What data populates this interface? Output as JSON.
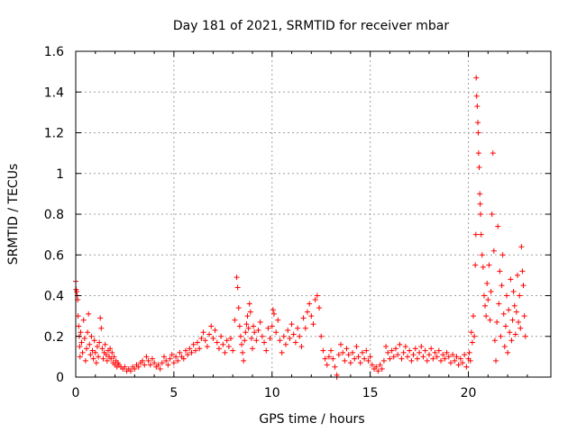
{
  "chart_data": {
    "type": "scatter",
    "title": "Day 181 of 2021, SRMTID for receiver mbar",
    "xlabel": "GPS time / hours",
    "ylabel": "SRMTID / TECUs",
    "xlim": [
      0,
      24.2
    ],
    "ylim": [
      0,
      1.6
    ],
    "xticks": [
      0,
      5,
      10,
      15,
      20
    ],
    "xtick_labels": [
      "0",
      "5",
      "10",
      "15",
      "20"
    ],
    "yticks": [
      0,
      0.2,
      0.4,
      0.6,
      0.8,
      1.0,
      1.2,
      1.4,
      1.6
    ],
    "ytick_labels": [
      "0",
      "0.2",
      "0.4",
      "0.6",
      "0.8",
      "1",
      "1.2",
      "1.4",
      "1.6"
    ],
    "grid": true,
    "marker": "+",
    "series_color": "#ff0000",
    "series": [
      {
        "name": "SRMTID",
        "points": [
          [
            0.0,
            0.47
          ],
          [
            0.02,
            0.43
          ],
          [
            0.05,
            0.42
          ],
          [
            0.08,
            0.4
          ],
          [
            0.1,
            0.38
          ],
          [
            0.12,
            0.3
          ],
          [
            0.15,
            0.25
          ],
          [
            0.18,
            0.2
          ],
          [
            0.2,
            0.15
          ],
          [
            0.22,
            0.1
          ],
          [
            0.25,
            0.22
          ],
          [
            0.3,
            0.17
          ],
          [
            0.35,
            0.12
          ],
          [
            0.4,
            0.28
          ],
          [
            0.45,
            0.19
          ],
          [
            0.5,
            0.08
          ],
          [
            0.55,
            0.14
          ],
          [
            0.6,
            0.22
          ],
          [
            0.65,
            0.31
          ],
          [
            0.7,
            0.16
          ],
          [
            0.75,
            0.11
          ],
          [
            0.8,
            0.2
          ],
          [
            0.85,
            0.13
          ],
          [
            0.9,
            0.09
          ],
          [
            0.95,
            0.18
          ],
          [
            1.0,
            0.12
          ],
          [
            1.05,
            0.07
          ],
          [
            1.1,
            0.15
          ],
          [
            1.15,
            0.1
          ],
          [
            1.2,
            0.17
          ],
          [
            1.25,
            0.29
          ],
          [
            1.3,
            0.24
          ],
          [
            1.35,
            0.14
          ],
          [
            1.4,
            0.09
          ],
          [
            1.45,
            0.12
          ],
          [
            1.5,
            0.16
          ],
          [
            1.55,
            0.11
          ],
          [
            1.6,
            0.08
          ],
          [
            1.65,
            0.13
          ],
          [
            1.7,
            0.1
          ],
          [
            1.75,
            0.14
          ],
          [
            1.8,
            0.09
          ],
          [
            1.85,
            0.12
          ],
          [
            1.9,
            0.07
          ],
          [
            1.95,
            0.1
          ],
          [
            2.0,
            0.06
          ],
          [
            2.05,
            0.08
          ],
          [
            2.1,
            0.05
          ],
          [
            2.15,
            0.07
          ],
          [
            2.2,
            0.06
          ],
          [
            2.3,
            0.05
          ],
          [
            2.4,
            0.04
          ],
          [
            2.5,
            0.05
          ],
          [
            2.6,
            0.03
          ],
          [
            2.7,
            0.04
          ],
          [
            2.8,
            0.03
          ],
          [
            2.9,
            0.05
          ],
          [
            3.0,
            0.04
          ],
          [
            3.1,
            0.06
          ],
          [
            3.2,
            0.05
          ],
          [
            3.3,
            0.07
          ],
          [
            3.4,
            0.08
          ],
          [
            3.5,
            0.06
          ],
          [
            3.6,
            0.1
          ],
          [
            3.7,
            0.08
          ],
          [
            3.8,
            0.06
          ],
          [
            3.9,
            0.09
          ],
          [
            4.0,
            0.07
          ],
          [
            4.1,
            0.05
          ],
          [
            4.2,
            0.06
          ],
          [
            4.3,
            0.04
          ],
          [
            4.4,
            0.07
          ],
          [
            4.5,
            0.1
          ],
          [
            4.6,
            0.08
          ],
          [
            4.7,
            0.06
          ],
          [
            4.8,
            0.09
          ],
          [
            4.9,
            0.11
          ],
          [
            5.0,
            0.07
          ],
          [
            5.1,
            0.1
          ],
          [
            5.2,
            0.08
          ],
          [
            5.3,
            0.12
          ],
          [
            5.4,
            0.1
          ],
          [
            5.5,
            0.09
          ],
          [
            5.6,
            0.13
          ],
          [
            5.7,
            0.11
          ],
          [
            5.8,
            0.14
          ],
          [
            5.9,
            0.12
          ],
          [
            6.0,
            0.16
          ],
          [
            6.1,
            0.13
          ],
          [
            6.2,
            0.17
          ],
          [
            6.3,
            0.14
          ],
          [
            6.4,
            0.19
          ],
          [
            6.5,
            0.22
          ],
          [
            6.6,
            0.18
          ],
          [
            6.7,
            0.15
          ],
          [
            6.8,
            0.21
          ],
          [
            6.9,
            0.25
          ],
          [
            7.0,
            0.19
          ],
          [
            7.1,
            0.23
          ],
          [
            7.2,
            0.17
          ],
          [
            7.3,
            0.14
          ],
          [
            7.4,
            0.2
          ],
          [
            7.5,
            0.16
          ],
          [
            7.6,
            0.12
          ],
          [
            7.7,
            0.18
          ],
          [
            7.8,
            0.15
          ],
          [
            7.9,
            0.19
          ],
          [
            8.0,
            0.13
          ],
          [
            8.1,
            0.28
          ],
          [
            8.2,
            0.49
          ],
          [
            8.25,
            0.44
          ],
          [
            8.3,
            0.34
          ],
          [
            8.35,
            0.25
          ],
          [
            8.4,
            0.2
          ],
          [
            8.45,
            0.16
          ],
          [
            8.5,
            0.12
          ],
          [
            8.55,
            0.08
          ],
          [
            8.6,
            0.18
          ],
          [
            8.65,
            0.22
          ],
          [
            8.7,
            0.26
          ],
          [
            8.75,
            0.3
          ],
          [
            8.8,
            0.24
          ],
          [
            8.85,
            0.36
          ],
          [
            8.9,
            0.32
          ],
          [
            8.95,
            0.19
          ],
          [
            9.0,
            0.14
          ],
          [
            9.05,
            0.25
          ],
          [
            9.1,
            0.22
          ],
          [
            9.2,
            0.18
          ],
          [
            9.3,
            0.23
          ],
          [
            9.4,
            0.27
          ],
          [
            9.5,
            0.2
          ],
          [
            9.6,
            0.17
          ],
          [
            9.7,
            0.13
          ],
          [
            9.8,
            0.24
          ],
          [
            9.9,
            0.19
          ],
          [
            10.0,
            0.25
          ],
          [
            10.05,
            0.33
          ],
          [
            10.1,
            0.31
          ],
          [
            10.2,
            0.22
          ],
          [
            10.3,
            0.28
          ],
          [
            10.4,
            0.18
          ],
          [
            10.5,
            0.12
          ],
          [
            10.6,
            0.2
          ],
          [
            10.7,
            0.16
          ],
          [
            10.8,
            0.23
          ],
          [
            10.9,
            0.19
          ],
          [
            11.0,
            0.26
          ],
          [
            11.1,
            0.21
          ],
          [
            11.2,
            0.17
          ],
          [
            11.3,
            0.24
          ],
          [
            11.4,
            0.2
          ],
          [
            11.5,
            0.15
          ],
          [
            11.6,
            0.29
          ],
          [
            11.7,
            0.24
          ],
          [
            11.8,
            0.32
          ],
          [
            11.9,
            0.36
          ],
          [
            12.0,
            0.3
          ],
          [
            12.1,
            0.26
          ],
          [
            12.2,
            0.38
          ],
          [
            12.3,
            0.4
          ],
          [
            12.4,
            0.34
          ],
          [
            12.5,
            0.2
          ],
          [
            12.6,
            0.13
          ],
          [
            12.7,
            0.09
          ],
          [
            12.8,
            0.06
          ],
          [
            12.9,
            0.1
          ],
          [
            13.0,
            0.13
          ],
          [
            13.1,
            0.09
          ],
          [
            13.2,
            0.05
          ],
          [
            13.3,
            0.0
          ],
          [
            13.3,
            0.01
          ],
          [
            13.4,
            0.11
          ],
          [
            13.5,
            0.16
          ],
          [
            13.6,
            0.12
          ],
          [
            13.7,
            0.08
          ],
          [
            13.8,
            0.14
          ],
          [
            13.9,
            0.11
          ],
          [
            14.0,
            0.07
          ],
          [
            14.1,
            0.12
          ],
          [
            14.2,
            0.09
          ],
          [
            14.3,
            0.15
          ],
          [
            14.4,
            0.1
          ],
          [
            14.5,
            0.07
          ],
          [
            14.6,
            0.12
          ],
          [
            14.7,
            0.09
          ],
          [
            14.8,
            0.13
          ],
          [
            14.9,
            0.08
          ],
          [
            15.0,
            0.1
          ],
          [
            15.1,
            0.06
          ],
          [
            15.2,
            0.04
          ],
          [
            15.3,
            0.05
          ],
          [
            15.4,
            0.03
          ],
          [
            15.5,
            0.06
          ],
          [
            15.6,
            0.04
          ],
          [
            15.7,
            0.08
          ],
          [
            15.8,
            0.15
          ],
          [
            15.9,
            0.12
          ],
          [
            16.0,
            0.09
          ],
          [
            16.1,
            0.13
          ],
          [
            16.2,
            0.1
          ],
          [
            16.3,
            0.14
          ],
          [
            16.4,
            0.11
          ],
          [
            16.5,
            0.16
          ],
          [
            16.6,
            0.09
          ],
          [
            16.7,
            0.12
          ],
          [
            16.8,
            0.15
          ],
          [
            16.9,
            0.1
          ],
          [
            17.0,
            0.13
          ],
          [
            17.1,
            0.08
          ],
          [
            17.2,
            0.11
          ],
          [
            17.3,
            0.14
          ],
          [
            17.4,
            0.09
          ],
          [
            17.5,
            0.12
          ],
          [
            17.6,
            0.15
          ],
          [
            17.7,
            0.1
          ],
          [
            17.8,
            0.13
          ],
          [
            17.9,
            0.08
          ],
          [
            18.0,
            0.11
          ],
          [
            18.1,
            0.14
          ],
          [
            18.2,
            0.09
          ],
          [
            18.3,
            0.12
          ],
          [
            18.4,
            0.1
          ],
          [
            18.5,
            0.13
          ],
          [
            18.6,
            0.08
          ],
          [
            18.7,
            0.11
          ],
          [
            18.8,
            0.09
          ],
          [
            18.9,
            0.12
          ],
          [
            19.0,
            0.1
          ],
          [
            19.1,
            0.07
          ],
          [
            19.2,
            0.11
          ],
          [
            19.3,
            0.08
          ],
          [
            19.4,
            0.1
          ],
          [
            19.5,
            0.06
          ],
          [
            19.6,
            0.09
          ],
          [
            19.7,
            0.07
          ],
          [
            19.8,
            0.11
          ],
          [
            19.9,
            0.05
          ],
          [
            20.0,
            0.09
          ],
          [
            20.05,
            0.12
          ],
          [
            20.1,
            0.08
          ],
          [
            20.15,
            0.22
          ],
          [
            20.2,
            0.17
          ],
          [
            20.25,
            0.3
          ],
          [
            20.3,
            0.2
          ],
          [
            20.35,
            0.55
          ],
          [
            20.38,
            0.7
          ],
          [
            20.4,
            1.47
          ],
          [
            20.42,
            1.38
          ],
          [
            20.45,
            1.33
          ],
          [
            20.48,
            1.25
          ],
          [
            20.5,
            1.2
          ],
          [
            20.52,
            1.1
          ],
          [
            20.55,
            1.03
          ],
          [
            20.58,
            0.9
          ],
          [
            20.6,
            0.85
          ],
          [
            20.62,
            0.8
          ],
          [
            20.65,
            0.7
          ],
          [
            20.7,
            0.6
          ],
          [
            20.75,
            0.54
          ],
          [
            20.8,
            0.4
          ],
          [
            20.85,
            0.35
          ],
          [
            20.9,
            0.3
          ],
          [
            20.95,
            0.46
          ],
          [
            21.0,
            0.38
          ],
          [
            21.05,
            0.55
          ],
          [
            21.1,
            0.28
          ],
          [
            21.15,
            0.42
          ],
          [
            21.2,
            0.8
          ],
          [
            21.25,
            1.1
          ],
          [
            21.3,
            0.62
          ],
          [
            21.35,
            0.18
          ],
          [
            21.4,
            0.08
          ],
          [
            21.45,
            0.27
          ],
          [
            21.5,
            0.74
          ],
          [
            21.55,
            0.36
          ],
          [
            21.6,
            0.52
          ],
          [
            21.65,
            0.2
          ],
          [
            21.7,
            0.45
          ],
          [
            21.75,
            0.6
          ],
          [
            21.8,
            0.31
          ],
          [
            21.85,
            0.15
          ],
          [
            21.9,
            0.25
          ],
          [
            21.95,
            0.4
          ],
          [
            22.0,
            0.12
          ],
          [
            22.05,
            0.33
          ],
          [
            22.1,
            0.22
          ],
          [
            22.15,
            0.48
          ],
          [
            22.2,
            0.18
          ],
          [
            22.25,
            0.28
          ],
          [
            22.3,
            0.42
          ],
          [
            22.35,
            0.35
          ],
          [
            22.4,
            0.21
          ],
          [
            22.45,
            0.32
          ],
          [
            22.5,
            0.5
          ],
          [
            22.55,
            0.27
          ],
          [
            22.6,
            0.4
          ],
          [
            22.65,
            0.24
          ],
          [
            22.7,
            0.64
          ],
          [
            22.75,
            0.52
          ],
          [
            22.8,
            0.45
          ],
          [
            22.85,
            0.3
          ],
          [
            22.9,
            0.2
          ]
        ]
      }
    ]
  }
}
